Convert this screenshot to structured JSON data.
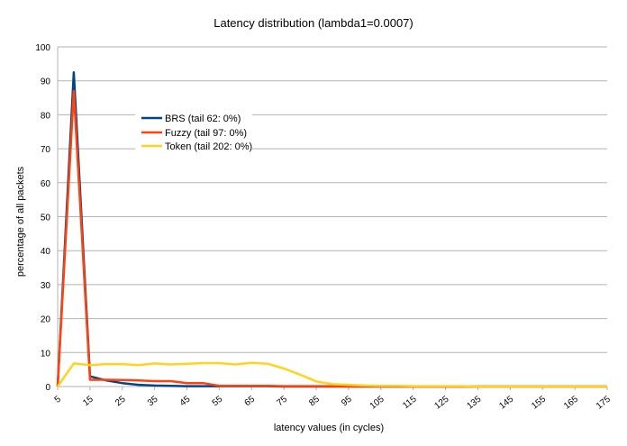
{
  "chart_data": {
    "type": "line",
    "title": "Latency distribution (lambda1=0.0007)",
    "xlabel": "latency values (in cycles)",
    "ylabel": "percentage of all packets",
    "ylim": [
      0,
      100
    ],
    "yticks": [
      0,
      10,
      20,
      30,
      40,
      50,
      60,
      70,
      80,
      90,
      100
    ],
    "xlim": [
      5,
      175
    ],
    "xticks": [
      5,
      15,
      25,
      35,
      45,
      55,
      65,
      75,
      85,
      95,
      105,
      115,
      125,
      135,
      145,
      155,
      165,
      175
    ],
    "grid": "horizontal",
    "legend_position": "upper-left-inside",
    "x": [
      5,
      10,
      15,
      20,
      25,
      30,
      35,
      40,
      45,
      50,
      55,
      60,
      65,
      70,
      75,
      80,
      85,
      90,
      95,
      100,
      105,
      110,
      115,
      120,
      125,
      130,
      135,
      140,
      145,
      150,
      155,
      160,
      165,
      170,
      175
    ],
    "series": [
      {
        "name": "BRS (tail 62: 0%)",
        "color": "#004586",
        "values": [
          0,
          92.5,
          3,
          1.8,
          1,
          0.5,
          0.3,
          0.2,
          0.1,
          0.1,
          0.1,
          0.1,
          0.1,
          0.1,
          0,
          0,
          0,
          0,
          0,
          0,
          0,
          0,
          0,
          0,
          0,
          0,
          0,
          0,
          0,
          0,
          0,
          0,
          0,
          0,
          0
        ]
      },
      {
        "name": "Fuzzy (tail 97: 0%)",
        "color": "#ff420e",
        "values": [
          0,
          87,
          2,
          2,
          1.9,
          1.8,
          1.6,
          1.6,
          1,
          1,
          0.2,
          0.2,
          0.2,
          0.2,
          0.1,
          0.1,
          0.1,
          0.1,
          0,
          0,
          0,
          0,
          0,
          0,
          0,
          0,
          0,
          0,
          0,
          0,
          0,
          0,
          0,
          0,
          0
        ]
      },
      {
        "name": "Token (tail 202: 0%)",
        "color": "#ffd320",
        "values": [
          0,
          6.8,
          6.3,
          6.6,
          6.6,
          6.3,
          6.8,
          6.5,
          6.7,
          6.9,
          6.9,
          6.5,
          7,
          6.7,
          5.3,
          3.5,
          1.5,
          0.7,
          0.5,
          0.3,
          0.2,
          0.2,
          0.1,
          0.1,
          0.1,
          0.1,
          0,
          0,
          0,
          0,
          0,
          0,
          0,
          0,
          0
        ]
      }
    ]
  }
}
